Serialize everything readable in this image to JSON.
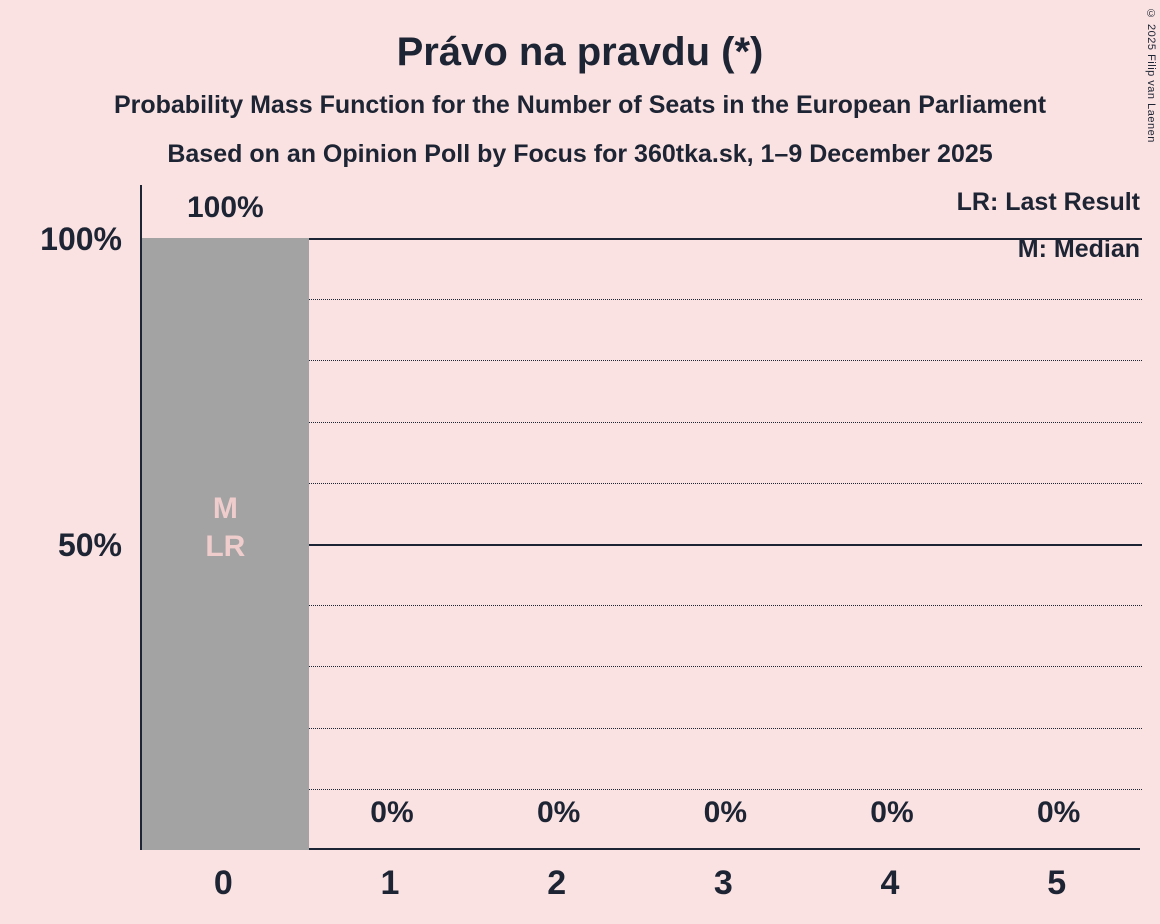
{
  "chart_data": {
    "type": "bar",
    "title": "Právo na pravdu (*)",
    "subtitle1": "Probability Mass Function for the Number of Seats in the European Parliament",
    "subtitle2": "Based on an Opinion Poll by Focus for 360tka.sk, 1–9 December 2025",
    "categories": [
      "0",
      "1",
      "2",
      "3",
      "4",
      "5"
    ],
    "values": [
      100,
      0,
      0,
      0,
      0,
      0
    ],
    "value_labels": [
      "100%",
      "0%",
      "0%",
      "0%",
      "0%",
      "0%"
    ],
    "xlabel": "",
    "ylabel": "",
    "ylim": [
      0,
      100
    ],
    "y_ticks": [
      "100%",
      "50%"
    ],
    "gridlines_percent": [
      10,
      20,
      30,
      40,
      50,
      60,
      70,
      80,
      90,
      100
    ],
    "solid_gridlines_percent": [
      50,
      100
    ],
    "grid": true,
    "legend_position": "top-right",
    "legend": [
      "LR: Last Result",
      "M: Median"
    ],
    "annotations": {
      "category": "0",
      "index": 0,
      "lines": [
        "M",
        "LR"
      ]
    },
    "copyright": "© 2025 Filip van Laenen",
    "colors": {
      "background": "#fbe2e2",
      "text": "#1d2433",
      "bar": "#a3a3a3",
      "bar_annotation": "#f0cdcd"
    }
  }
}
